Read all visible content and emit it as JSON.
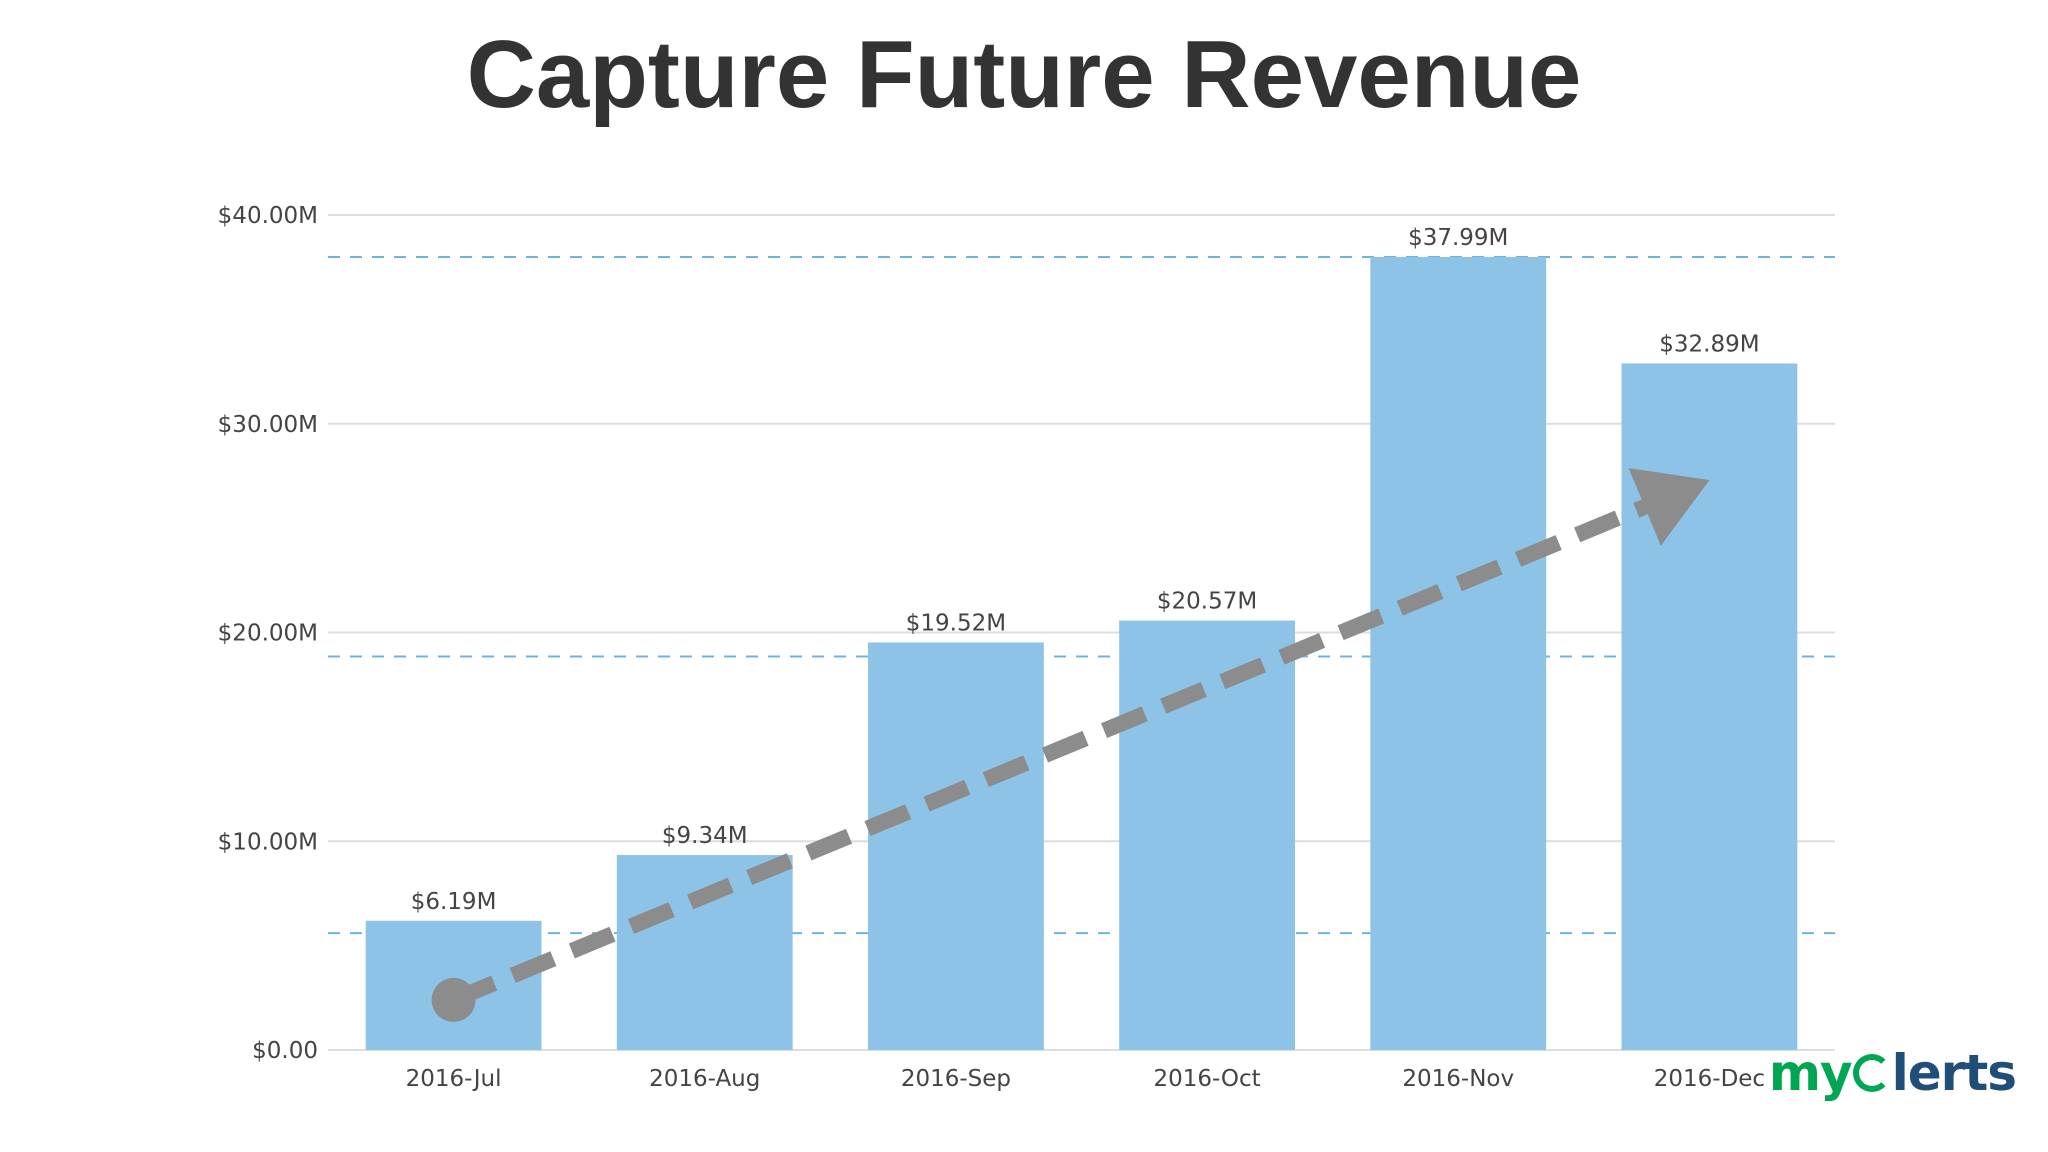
{
  "page": {
    "title": "Capture Future Revenue"
  },
  "logo": {
    "prefix": "my",
    "suffix": "lerts"
  },
  "colors": {
    "bar": "#8dc3e6",
    "grid": "#dddddd",
    "reference_line": "#6cb4dd",
    "trend_arrow": "#8c8c8c",
    "logo_green": "#00a651",
    "logo_blue": "#1f4e79"
  },
  "chart_data": {
    "type": "bar",
    "title": "",
    "xlabel": "",
    "ylabel": "",
    "categories": [
      "2016-Jul",
      "2016-Aug",
      "2016-Sep",
      "2016-Oct",
      "2016-Nov",
      "2016-Dec"
    ],
    "values": [
      6.19,
      9.34,
      19.52,
      20.57,
      37.99,
      32.89
    ],
    "data_labels": [
      "$6.19M",
      "$9.34M",
      "$19.52M",
      "$20.57M",
      "$37.99M",
      "$32.89M"
    ],
    "ylim": [
      0,
      40
    ],
    "yticks": [
      0,
      10,
      20,
      30,
      40
    ],
    "ytick_labels": [
      "$0.00",
      "$10.00M",
      "$20.00M",
      "$30.00M",
      "$40.00M"
    ],
    "grid": true,
    "legend": "none",
    "reference_lines": [
      37.99,
      18.85,
      5.6
    ],
    "trend_arrow": {
      "from": {
        "category": "2016-Jul",
        "value": 2.4
      },
      "to": {
        "category": "2016-Dec",
        "value": 27.3
      }
    }
  }
}
